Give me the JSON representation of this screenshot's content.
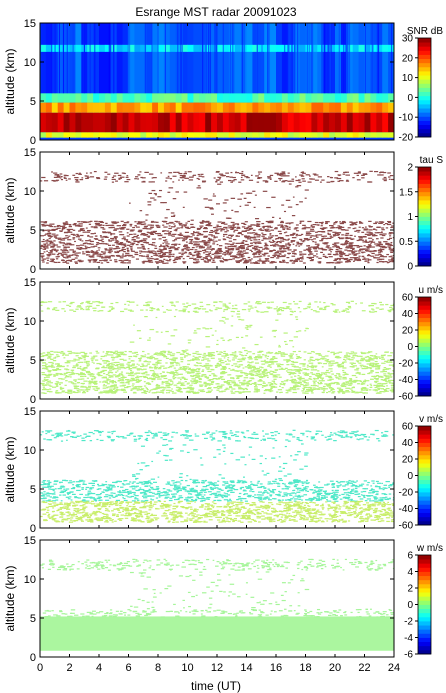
{
  "chart_data": {
    "type": "heatmap",
    "title": "Esrange MST radar 20091023",
    "xlabel": "time (UT)",
    "xlim": [
      0,
      24
    ],
    "xticks": [
      0,
      2,
      4,
      6,
      8,
      10,
      12,
      14,
      16,
      18,
      20,
      22,
      24
    ],
    "panels": [
      {
        "id": "snr",
        "ylabel": "altitude (km)",
        "ylim": [
          0,
          15
        ],
        "yticks": [
          0,
          5,
          10,
          15
        ],
        "colorbar_label": "SNR dB",
        "colorbar_range": [
          -20,
          30
        ],
        "colorbar_ticks": [
          -20,
          -10,
          0,
          10,
          20,
          30
        ],
        "coverage": "full",
        "layers": [
          {
            "alt_range": [
              0.3,
              1.0
            ],
            "level": 0.6,
            "note": "cyan near ground"
          },
          {
            "alt_range": [
              1.0,
              3.5
            ],
            "level": 0.93,
            "note": "red/orange boundary layer"
          },
          {
            "alt_range": [
              3.5,
              4.8
            ],
            "level": 0.72,
            "note": "yellow-green"
          },
          {
            "alt_range": [
              4.8,
              6.0
            ],
            "level": 0.45,
            "note": "cyan-green"
          },
          {
            "alt_range": [
              6.0,
              15.0
            ],
            "level": 0.2,
            "note": "blue background"
          },
          {
            "alt_range": [
              11.3,
              12.2
            ],
            "level": 0.35,
            "note": "tropopause echo"
          }
        ]
      },
      {
        "id": "tau",
        "ylabel": "altitude (km)",
        "ylim": [
          0,
          15
        ],
        "yticks": [
          0,
          5,
          10,
          15
        ],
        "colorbar_label": "tau S",
        "colorbar_range": [
          0,
          2
        ],
        "colorbar_ticks": [
          0,
          0.5,
          1,
          1.5,
          2
        ],
        "coverage": "sparse",
        "value_color": "#8b4a4a"
      },
      {
        "id": "u",
        "ylabel": "altitude (km)",
        "ylim": [
          0,
          15
        ],
        "yticks": [
          0,
          5,
          10,
          15
        ],
        "colorbar_label": "u m/s",
        "colorbar_range": [
          -60,
          60
        ],
        "colorbar_ticks": [
          -60,
          -40,
          -20,
          0,
          20,
          40,
          60
        ],
        "coverage": "sparse",
        "value_color": "#b8f27a"
      },
      {
        "id": "v",
        "ylabel": "altitude (km)",
        "ylim": [
          0,
          15
        ],
        "yticks": [
          0,
          5,
          10,
          15
        ],
        "colorbar_label": "v m/s",
        "colorbar_range": [
          -60,
          60
        ],
        "colorbar_ticks": [
          -60,
          -40,
          -20,
          0,
          20,
          40,
          60
        ],
        "coverage": "sparse",
        "value_color": "#4fe8c8",
        "low_color": "#c8ee6a"
      },
      {
        "id": "w",
        "ylabel": "altitude (km)",
        "ylim": [
          0,
          15
        ],
        "yticks": [
          0,
          5,
          10,
          15
        ],
        "colorbar_label": "w m/s",
        "colorbar_range": [
          -6,
          6
        ],
        "colorbar_ticks": [
          -6,
          -4,
          -2,
          0,
          2,
          4,
          6
        ],
        "coverage": "dense-low",
        "value_color": "#a6f59a"
      }
    ]
  }
}
